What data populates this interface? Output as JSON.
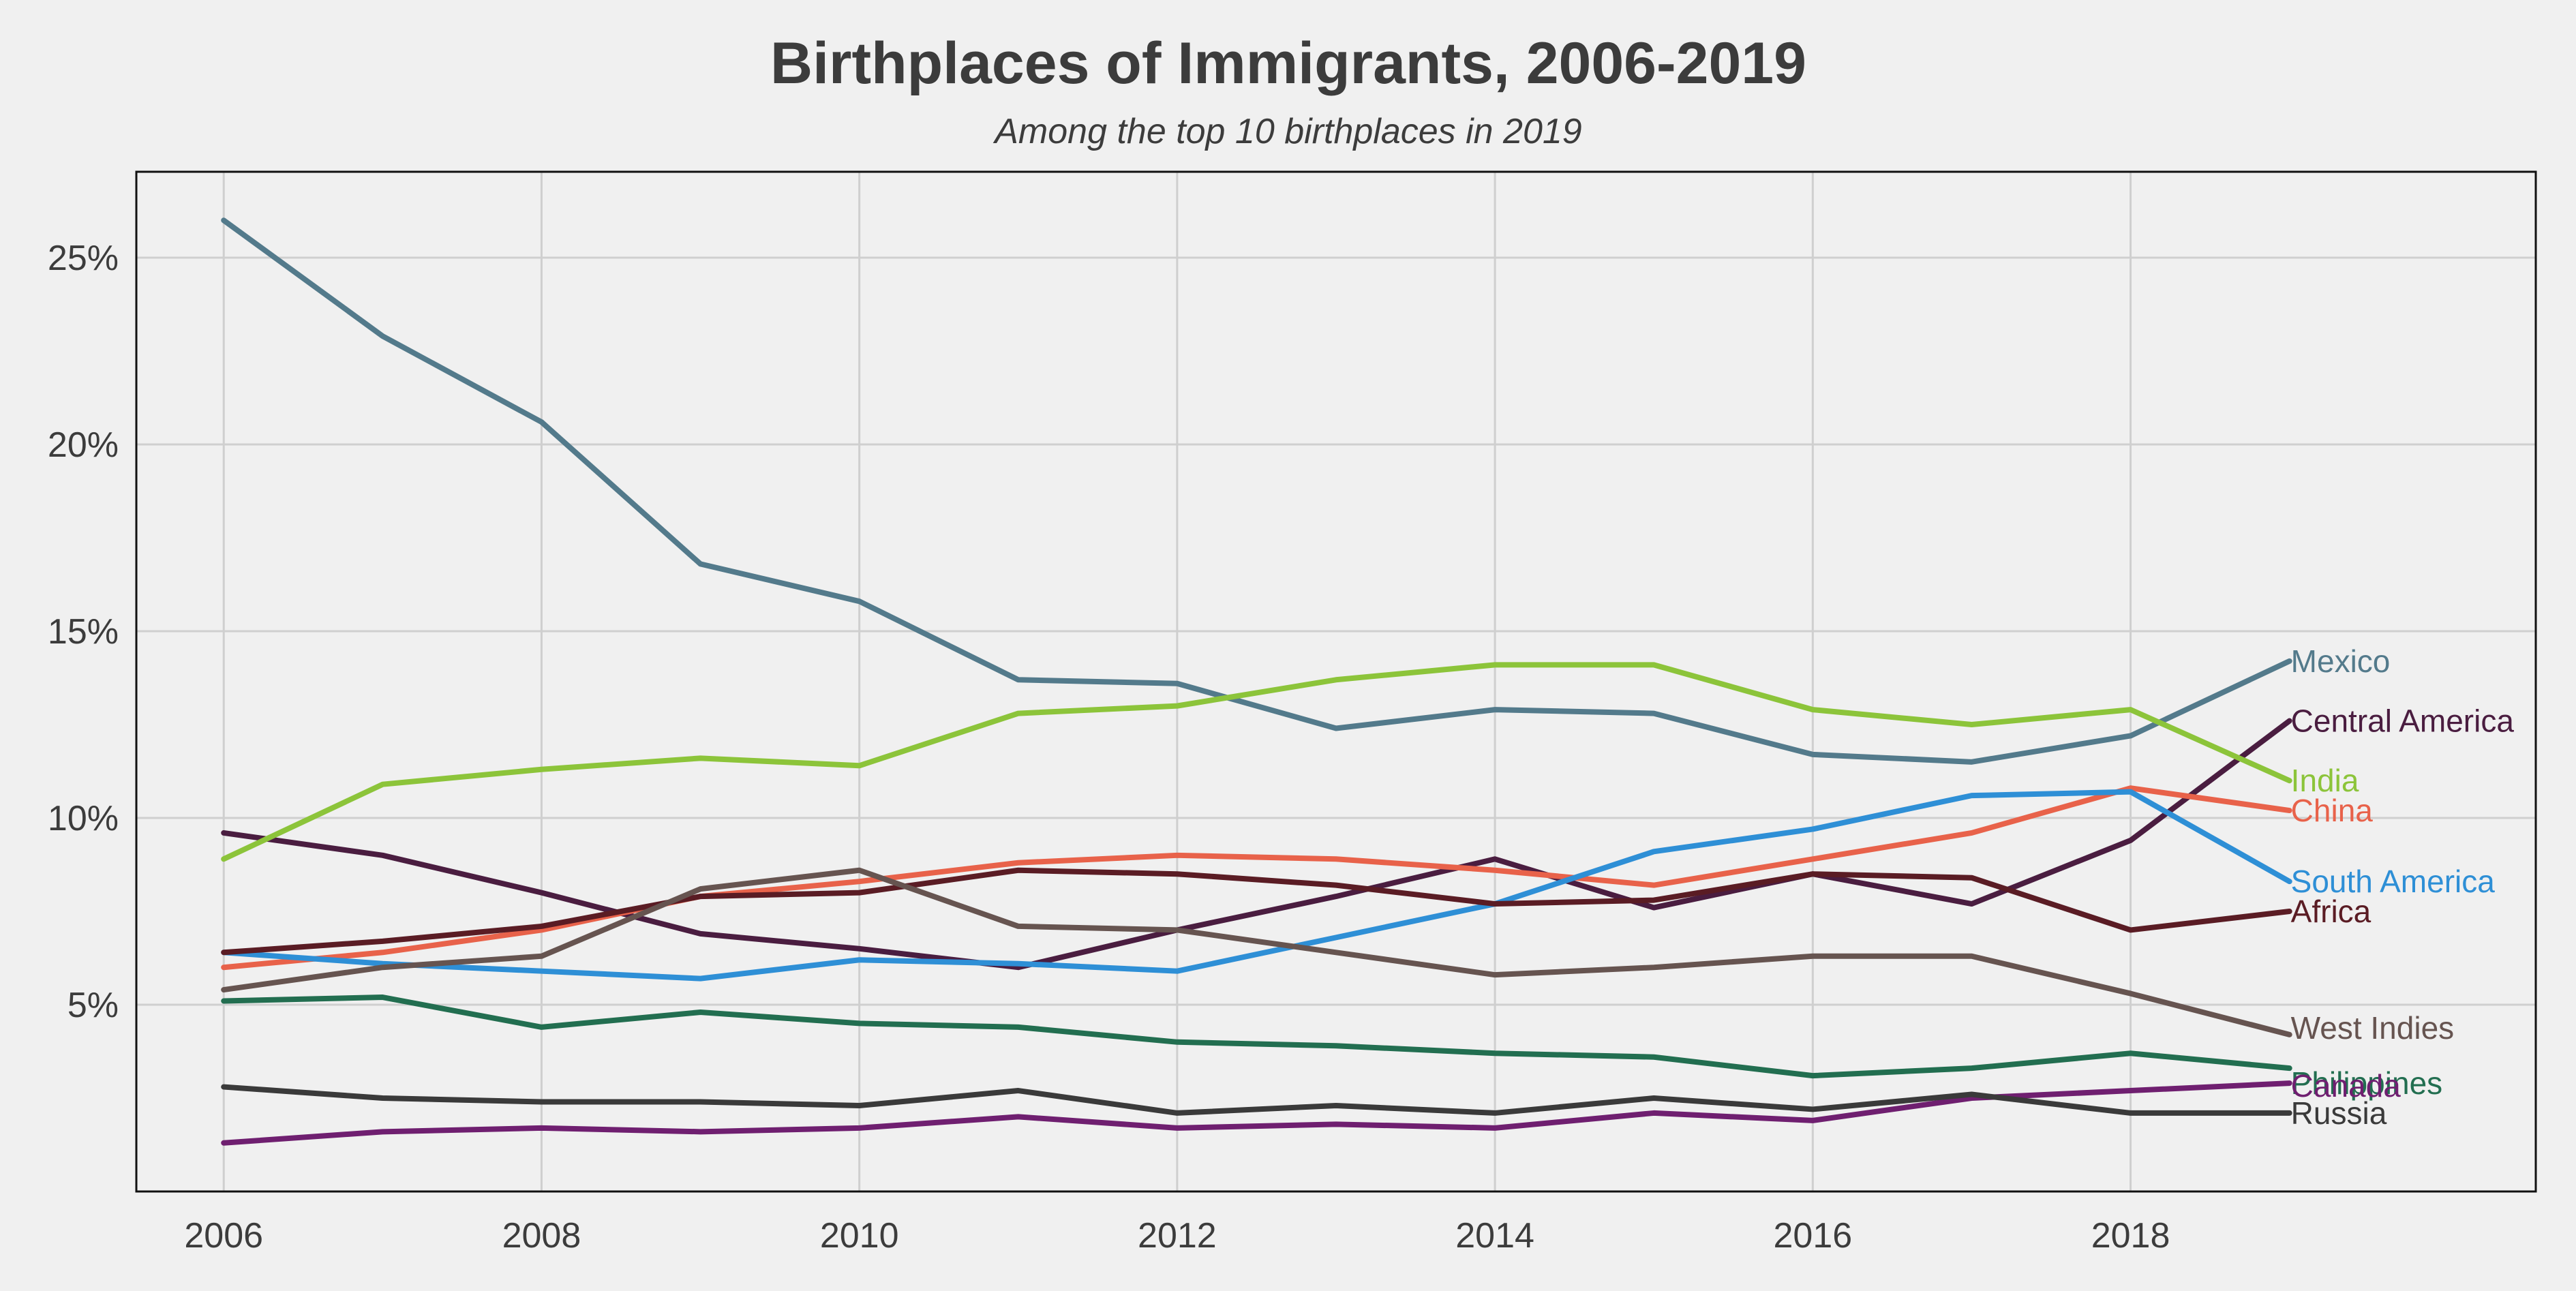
{
  "chart_data": {
    "type": "line",
    "title": "Birthplaces of Immigrants, 2006-2019",
    "subtitle": "Among the top 10 birthplaces in 2019",
    "xlabel": "",
    "ylabel": "",
    "xlim": [
      2005.45,
      2020.55
    ],
    "ylim": [
      0,
      27.3
    ],
    "x": [
      2006,
      2007,
      2008,
      2009,
      2010,
      2011,
      2012,
      2013,
      2014,
      2015,
      2016,
      2017,
      2018,
      2019
    ],
    "x_ticks": [
      2006,
      2008,
      2010,
      2012,
      2014,
      2016,
      2018
    ],
    "x_tick_labels": [
      "2006",
      "2008",
      "2010",
      "2012",
      "2014",
      "2016",
      "2018"
    ],
    "y_ticks": [
      5,
      10,
      15,
      20,
      25
    ],
    "y_tick_labels": [
      "5%",
      "10%",
      "15%",
      "20%",
      "25%"
    ],
    "grid": true,
    "legend": "inline labels at line ends",
    "series": [
      {
        "name": "Mexico",
        "color": "#537a8b",
        "values": [
          26.0,
          22.9,
          20.6,
          16.8,
          15.8,
          13.7,
          13.6,
          12.4,
          12.9,
          12.8,
          11.7,
          11.5,
          12.2,
          14.2
        ]
      },
      {
        "name": "Central America",
        "color": "#4a1d40",
        "values": [
          9.6,
          9.0,
          8.0,
          6.9,
          6.5,
          6.0,
          7.0,
          7.9,
          8.9,
          7.6,
          8.5,
          7.7,
          9.4,
          12.6
        ]
      },
      {
        "name": "India",
        "color": "#8cc43a",
        "values": [
          8.9,
          10.9,
          11.3,
          11.6,
          11.4,
          12.8,
          13.0,
          13.7,
          14.1,
          14.1,
          12.9,
          12.5,
          12.9,
          11.0
        ]
      },
      {
        "name": "China",
        "color": "#e8624a",
        "values": [
          6.0,
          6.4,
          7.0,
          7.9,
          8.3,
          8.8,
          9.0,
          8.9,
          8.6,
          8.2,
          8.9,
          9.6,
          10.8,
          10.2
        ]
      },
      {
        "name": "South America",
        "color": "#2e8fd6",
        "values": [
          6.4,
          6.1,
          5.9,
          5.7,
          6.2,
          6.1,
          5.9,
          6.8,
          7.7,
          9.1,
          9.7,
          10.6,
          10.7,
          8.3
        ]
      },
      {
        "name": "Africa",
        "color": "#5a1c24",
        "values": [
          6.4,
          6.7,
          7.1,
          7.9,
          8.0,
          8.6,
          8.5,
          8.2,
          7.7,
          7.8,
          8.5,
          8.4,
          7.0,
          7.5
        ]
      },
      {
        "name": "West Indies",
        "color": "#665450",
        "values": [
          5.4,
          6.0,
          6.3,
          8.1,
          8.6,
          7.1,
          7.0,
          6.4,
          5.8,
          6.0,
          6.3,
          6.3,
          5.3,
          4.2
        ]
      },
      {
        "name": "Philippines",
        "color": "#226e50",
        "values": [
          5.1,
          5.2,
          4.4,
          4.8,
          4.5,
          4.4,
          4.0,
          3.9,
          3.7,
          3.6,
          3.1,
          3.3,
          3.7,
          3.3
        ]
      },
      {
        "name": "Canada",
        "color": "#6f1f70",
        "values": [
          1.3,
          1.6,
          1.7,
          1.6,
          1.7,
          2.0,
          1.7,
          1.8,
          1.7,
          2.1,
          1.9,
          2.5,
          2.7,
          2.9
        ]
      },
      {
        "name": "Russia",
        "color": "#3a3a3a",
        "values": [
          2.8,
          2.5,
          2.4,
          2.4,
          2.3,
          2.7,
          2.1,
          2.3,
          2.1,
          2.5,
          2.2,
          2.6,
          2.1,
          2.1
        ]
      }
    ]
  }
}
